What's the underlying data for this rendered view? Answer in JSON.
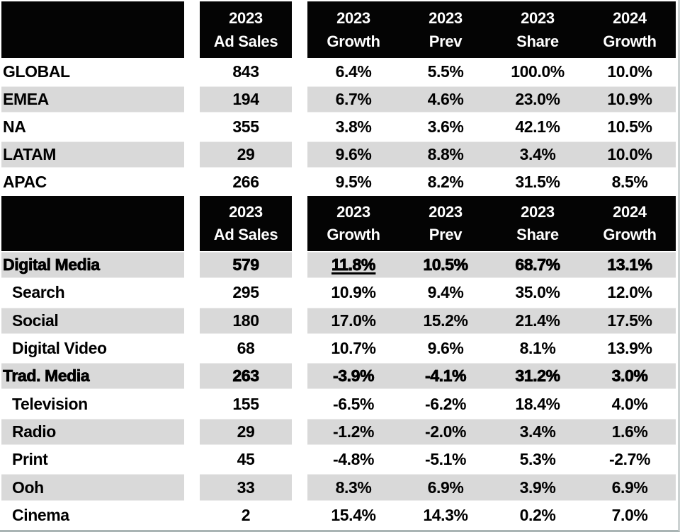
{
  "colors": {
    "header_bg": "#040404",
    "header_text": "#ffffff",
    "shaded_row": "#d9d9d9",
    "body_text": "#000000"
  },
  "header": {
    "ad_sales_col": {
      "year": "2023",
      "label": "Ad Sales"
    },
    "metrics": [
      {
        "year": "2023",
        "label": "Growth"
      },
      {
        "year": "2023",
        "label": "Prev"
      },
      {
        "year": "2023",
        "label": "Share"
      },
      {
        "year": "2024",
        "label": "Growth"
      }
    ]
  },
  "sections": [
    {
      "id": "regions",
      "rows": [
        {
          "label": "GLOBAL",
          "ad_sales": "843",
          "values": [
            "6.4%",
            "5.5%",
            "100.0%",
            "10.0%"
          ],
          "shaded": false,
          "indent": false,
          "heavy": false
        },
        {
          "label": "EMEA",
          "ad_sales": "194",
          "values": [
            "6.7%",
            "4.6%",
            "23.0%",
            "10.9%"
          ],
          "shaded": true,
          "indent": false,
          "heavy": false
        },
        {
          "label": "NA",
          "ad_sales": "355",
          "values": [
            "3.8%",
            "3.6%",
            "42.1%",
            "10.5%"
          ],
          "shaded": false,
          "indent": false,
          "heavy": false
        },
        {
          "label": "LATAM",
          "ad_sales": "29",
          "values": [
            "9.6%",
            "8.8%",
            "3.4%",
            "10.0%"
          ],
          "shaded": true,
          "indent": false,
          "heavy": false
        },
        {
          "label": "APAC",
          "ad_sales": "266",
          "values": [
            "9.5%",
            "8.2%",
            "31.5%",
            "8.5%"
          ],
          "shaded": false,
          "indent": false,
          "heavy": false
        }
      ]
    },
    {
      "id": "media",
      "rows": [
        {
          "label": "Digital Media",
          "ad_sales": "579",
          "values": [
            "11.8%",
            "10.5%",
            "68.7%",
            "13.1%"
          ],
          "shaded": true,
          "indent": false,
          "heavy": true,
          "underline_first_value": true
        },
        {
          "label": "Search",
          "ad_sales": "295",
          "values": [
            "10.9%",
            "9.4%",
            "35.0%",
            "12.0%"
          ],
          "shaded": false,
          "indent": true,
          "heavy": false
        },
        {
          "label": "Social",
          "ad_sales": "180",
          "values": [
            "17.0%",
            "15.2%",
            "21.4%",
            "17.5%"
          ],
          "shaded": true,
          "indent": true,
          "heavy": false
        },
        {
          "label": "Digital Video",
          "ad_sales": "68",
          "values": [
            "10.7%",
            "9.6%",
            "8.1%",
            "13.9%"
          ],
          "shaded": false,
          "indent": true,
          "heavy": false
        },
        {
          "label": "Trad. Media",
          "ad_sales": "263",
          "values": [
            "-3.9%",
            "-4.1%",
            "31.2%",
            "3.0%"
          ],
          "shaded": true,
          "indent": false,
          "heavy": true
        },
        {
          "label": "Television",
          "ad_sales": "155",
          "values": [
            "-6.5%",
            "-6.2%",
            "18.4%",
            "4.0%"
          ],
          "shaded": false,
          "indent": true,
          "heavy": false
        },
        {
          "label": "Radio",
          "ad_sales": "29",
          "values": [
            "-1.2%",
            "-2.0%",
            "3.4%",
            "1.6%"
          ],
          "shaded": true,
          "indent": true,
          "heavy": false
        },
        {
          "label": "Print",
          "ad_sales": "45",
          "values": [
            "-4.8%",
            "-5.1%",
            "5.3%",
            "-2.7%"
          ],
          "shaded": false,
          "indent": true,
          "heavy": false
        },
        {
          "label": "Ooh",
          "ad_sales": "33",
          "values": [
            "8.3%",
            "6.9%",
            "3.9%",
            "6.9%"
          ],
          "shaded": true,
          "indent": true,
          "heavy": false
        },
        {
          "label": "Cinema",
          "ad_sales": "2",
          "values": [
            "15.4%",
            "14.3%",
            "0.2%",
            "7.0%"
          ],
          "shaded": false,
          "indent": true,
          "heavy": false
        }
      ]
    }
  ],
  "chart_data": {
    "type": "table",
    "columns": [
      "",
      "2023 Ad Sales",
      "2023 Growth",
      "2023 Prev",
      "2023 Share",
      "2024 Growth"
    ],
    "sections": [
      {
        "name": "regions",
        "rows": [
          [
            "GLOBAL",
            843,
            "6.4%",
            "5.5%",
            "100.0%",
            "10.0%"
          ],
          [
            "EMEA",
            194,
            "6.7%",
            "4.6%",
            "23.0%",
            "10.9%"
          ],
          [
            "NA",
            355,
            "3.8%",
            "3.6%",
            "42.1%",
            "10.5%"
          ],
          [
            "LATAM",
            29,
            "9.6%",
            "8.8%",
            "3.4%",
            "10.0%"
          ],
          [
            "APAC",
            266,
            "9.5%",
            "8.2%",
            "31.5%",
            "8.5%"
          ]
        ]
      },
      {
        "name": "media_types",
        "rows": [
          [
            "Digital Media",
            579,
            "11.8%",
            "10.5%",
            "68.7%",
            "13.1%"
          ],
          [
            "Search",
            295,
            "10.9%",
            "9.4%",
            "35.0%",
            "12.0%"
          ],
          [
            "Social",
            180,
            "17.0%",
            "15.2%",
            "21.4%",
            "17.5%"
          ],
          [
            "Digital Video",
            68,
            "10.7%",
            "9.6%",
            "8.1%",
            "13.9%"
          ],
          [
            "Trad. Media",
            263,
            "-3.9%",
            "-4.1%",
            "31.2%",
            "3.0%"
          ],
          [
            "Television",
            155,
            "-6.5%",
            "-6.2%",
            "18.4%",
            "4.0%"
          ],
          [
            "Radio",
            29,
            "-1.2%",
            "-2.0%",
            "3.4%",
            "1.6%"
          ],
          [
            "Print",
            45,
            "-4.8%",
            "-5.1%",
            "5.3%",
            "-2.7%"
          ],
          [
            "Ooh",
            33,
            "8.3%",
            "6.9%",
            "3.9%",
            "6.9%"
          ],
          [
            "Cinema",
            2,
            "15.4%",
            "14.3%",
            "0.2%",
            "7.0%"
          ]
        ]
      }
    ]
  }
}
